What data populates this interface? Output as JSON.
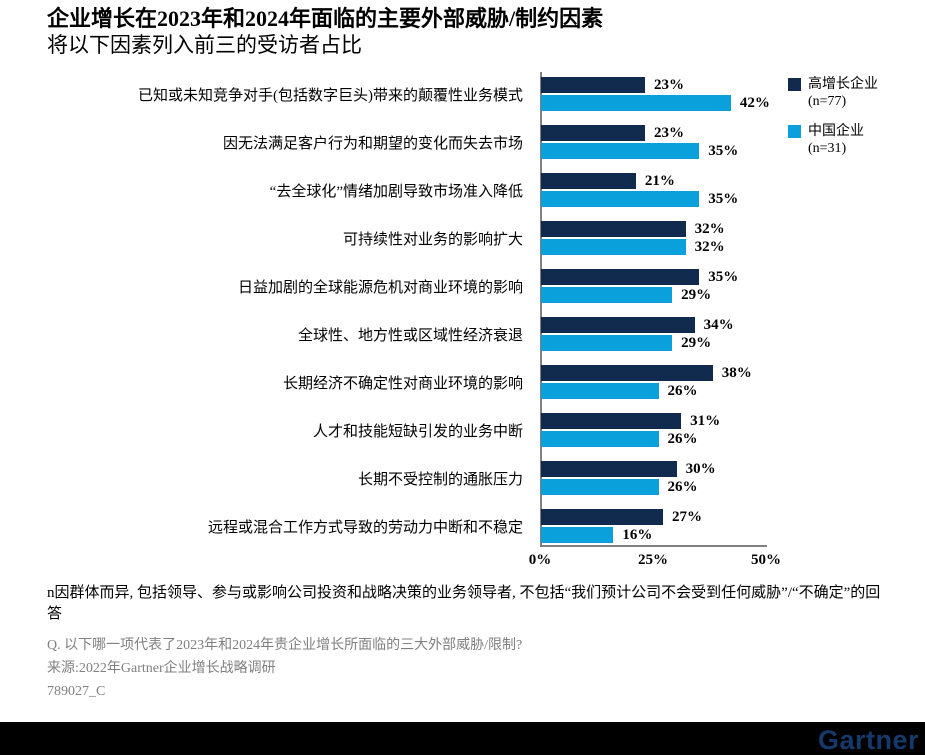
{
  "header": {
    "title": "企业增长在2023年和2024年面临的主要外部威胁/制约因素",
    "subtitle": "将以下因素列入前三的受访者占比"
  },
  "chart_data": {
    "type": "bar",
    "orientation": "horizontal",
    "title": "企业增长在2023年和2024年面临的主要外部威胁/制约因素",
    "subtitle": "将以下因素列入前三的受访者占比",
    "categories": [
      "已知或未知竞争对手(包括数字巨头)带来的颠覆性业务模式",
      "因无法满足客户行为和期望的变化而失去市场",
      "“去全球化”情绪加剧导致市场准入降低",
      "可持续性对业务的影响扩大",
      "日益加剧的全球能源危机对商业环境的影响",
      "全球性、地方性或区域性经济衰退",
      "长期经济不确定性对商业环境的影响",
      "人才和技能短缺引发的业务中断",
      "长期不受控制的通胀压力",
      "远程或混合工作方式导致的劳动力中断和不稳定"
    ],
    "series": [
      {
        "name": "高增长企业",
        "sub": "(n=77)",
        "color": "#112b4e",
        "values": [
          23,
          23,
          21,
          32,
          35,
          34,
          38,
          31,
          30,
          27
        ]
      },
      {
        "name": "中国企业",
        "sub": "(n=31)",
        "color": "#09a0dc",
        "values": [
          42,
          35,
          35,
          32,
          29,
          29,
          26,
          26,
          26,
          16
        ]
      }
    ],
    "value_suffix": "%",
    "xlim": [
      0,
      50
    ],
    "x_ticks": [
      {
        "label": "0%",
        "value": 0
      },
      {
        "label": "25%",
        "value": 25
      },
      {
        "label": "50%",
        "value": 50
      }
    ],
    "grid": false,
    "legend_position": "top-right"
  },
  "footnotes": {
    "note": "n因群体而异, 包括领导、参与或影响公司投资和战略决策的业务领导者, 不包括“我们预计公司不会受到任何威胁”/“不确定”的回答",
    "question": "Q. 以下哪一项代表了2023年和2024年贵企业增长所面临的三大外部威胁/限制?",
    "source": "来源:2022年Gartner企业增长战略调研",
    "doc_id": "789027_C"
  },
  "footer": {
    "logo": "Gartner",
    "bar_color": "#000000",
    "logo_color": "#15396b"
  }
}
